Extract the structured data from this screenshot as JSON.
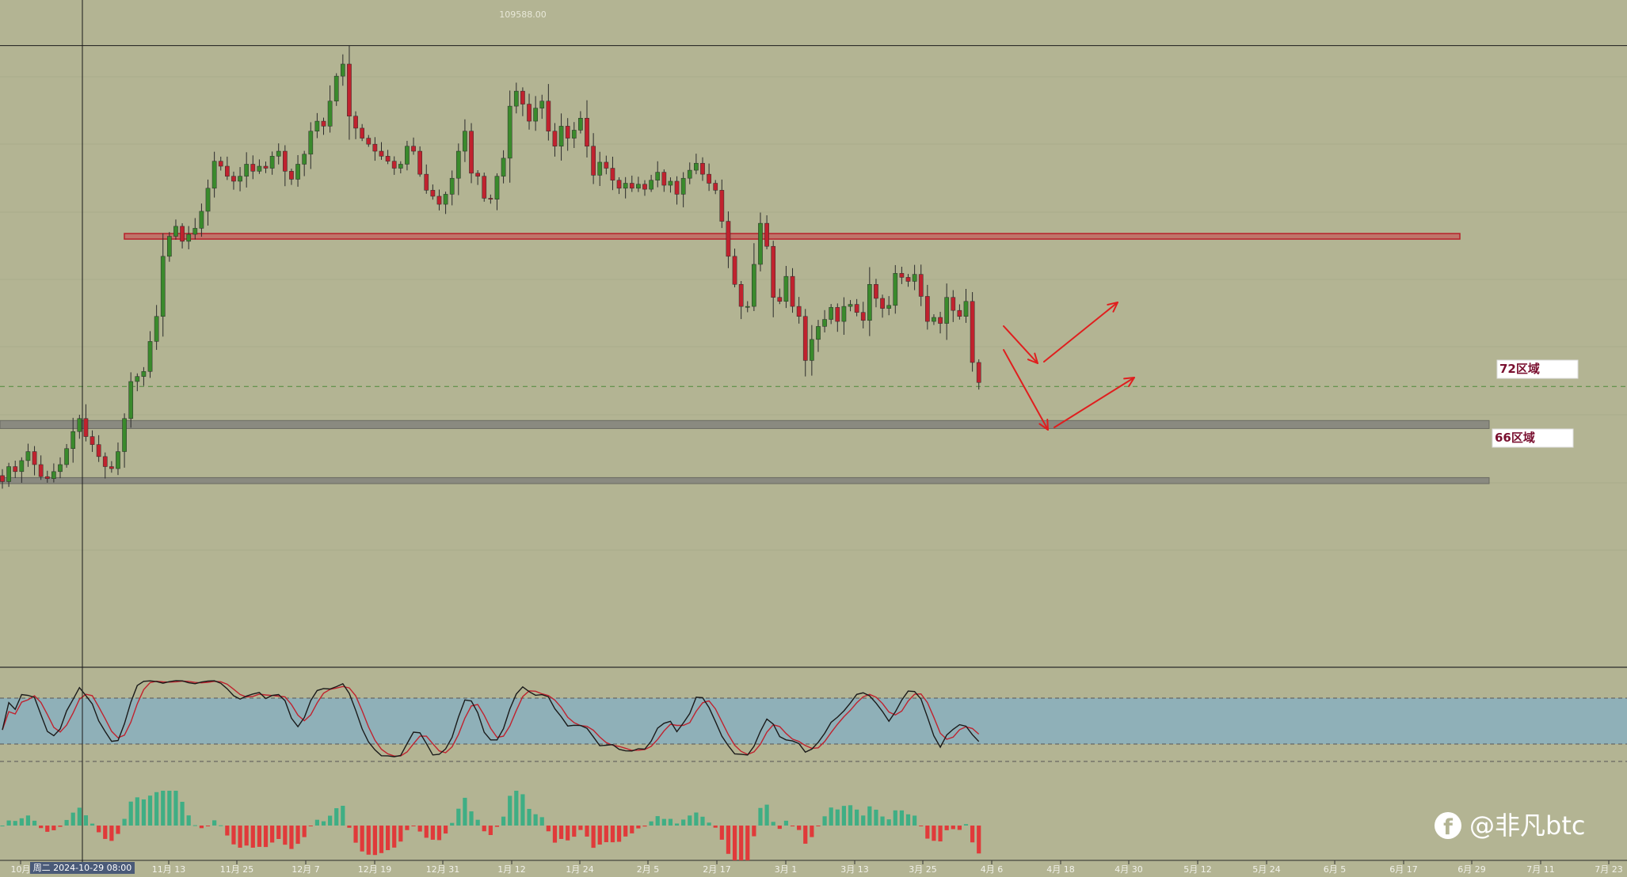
{
  "colors": {
    "background": "#b3b493",
    "bull": "#3a8a2c",
    "bear": "#c0222e",
    "wick": "#2b2b2b",
    "resistance_band": "#c84048",
    "zone_band": "#8a8a80",
    "stoch_fill": "#8fb0b8",
    "stoch_k": "#1a1a1a",
    "stoch_d": "#c0222e",
    "hist_pos": "#3fae84",
    "hist_neg": "#e03a3a",
    "arrow": "#e01e1e",
    "grid": "#a0a184"
  },
  "crosshair": {
    "time_label": "周二 2024-10-29 08:00"
  },
  "price_high_label": "109588.00",
  "zones": [
    {
      "label": "72区域"
    },
    {
      "label": "66区域"
    }
  ],
  "watermark": {
    "icon": "facebook-icon",
    "text": "@非凡btc"
  },
  "chart_data": {
    "type": "candlestick",
    "price_axis": {
      "min": 55000,
      "max": 110000,
      "log_scale": false
    },
    "resistance_level": 91000,
    "reference_dashed_level": 76000,
    "zones": [
      {
        "label": "72区域",
        "low": 71800,
        "high": 72600
      },
      {
        "label": "66区域",
        "low": 66300,
        "high": 66900
      }
    ],
    "x_tick_labels": [
      "10月",
      "11月 13",
      "11月 25",
      "12月 7",
      "12月 19",
      "12月 31",
      "1月 12",
      "1月 24",
      "2月 5",
      "2月 17",
      "3月 1",
      "3月 13",
      "3月 25",
      "4月 6",
      "4月 18",
      "4月 30",
      "5月 12",
      "5月 24",
      "6月 5",
      "6月 17",
      "6月 29",
      "7月 11",
      "7月 23"
    ],
    "closes": [
      66500,
      68000,
      67500,
      68600,
      69500,
      68200,
      67000,
      66800,
      67500,
      68200,
      69800,
      71500,
      72800,
      71000,
      70200,
      69000,
      68000,
      67800,
      69500,
      72800,
      76500,
      77000,
      77500,
      80500,
      83000,
      89000,
      91000,
      92000,
      90500,
      91200,
      91800,
      93500,
      95800,
      98500,
      98000,
      97000,
      96500,
      97000,
      98200,
      97500,
      98000,
      97800,
      99000,
      99500,
      97500,
      96700,
      98200,
      99200,
      101500,
      102500,
      102000,
      104500,
      107000,
      108200,
      103000,
      101800,
      100800,
      100200,
      99500,
      99000,
      98500,
      97800,
      98200,
      100000,
      99500,
      97200,
      95600,
      95000,
      94200,
      95200,
      96800,
      99500,
      101500,
      97300,
      97000,
      94800,
      94700,
      97000,
      98800,
      104000,
      105500,
      104200,
      102500,
      103800,
      104500,
      101500,
      100000,
      102000,
      100800,
      101600,
      102800,
      100000,
      97100,
      98400,
      97800,
      96600,
      95800,
      96300,
      95800,
      96200,
      95700,
      96600,
      97400,
      96100,
      96500,
      95200,
      96800,
      97600,
      98300,
      97200,
      96300,
      95600,
      92500,
      89000,
      86200,
      84000,
      84000,
      88200,
      92300,
      90000,
      84900,
      84500,
      87000,
      84000,
      83000,
      78600,
      80700,
      82000,
      82700,
      83900,
      82500,
      84000,
      84200,
      83400,
      82600,
      86200,
      84800,
      83800,
      84100,
      87300,
      86900,
      86500,
      87200,
      85000,
      82500,
      82900,
      82300,
      84900,
      83600,
      83000,
      84500,
      78400,
      76400
    ]
  }
}
